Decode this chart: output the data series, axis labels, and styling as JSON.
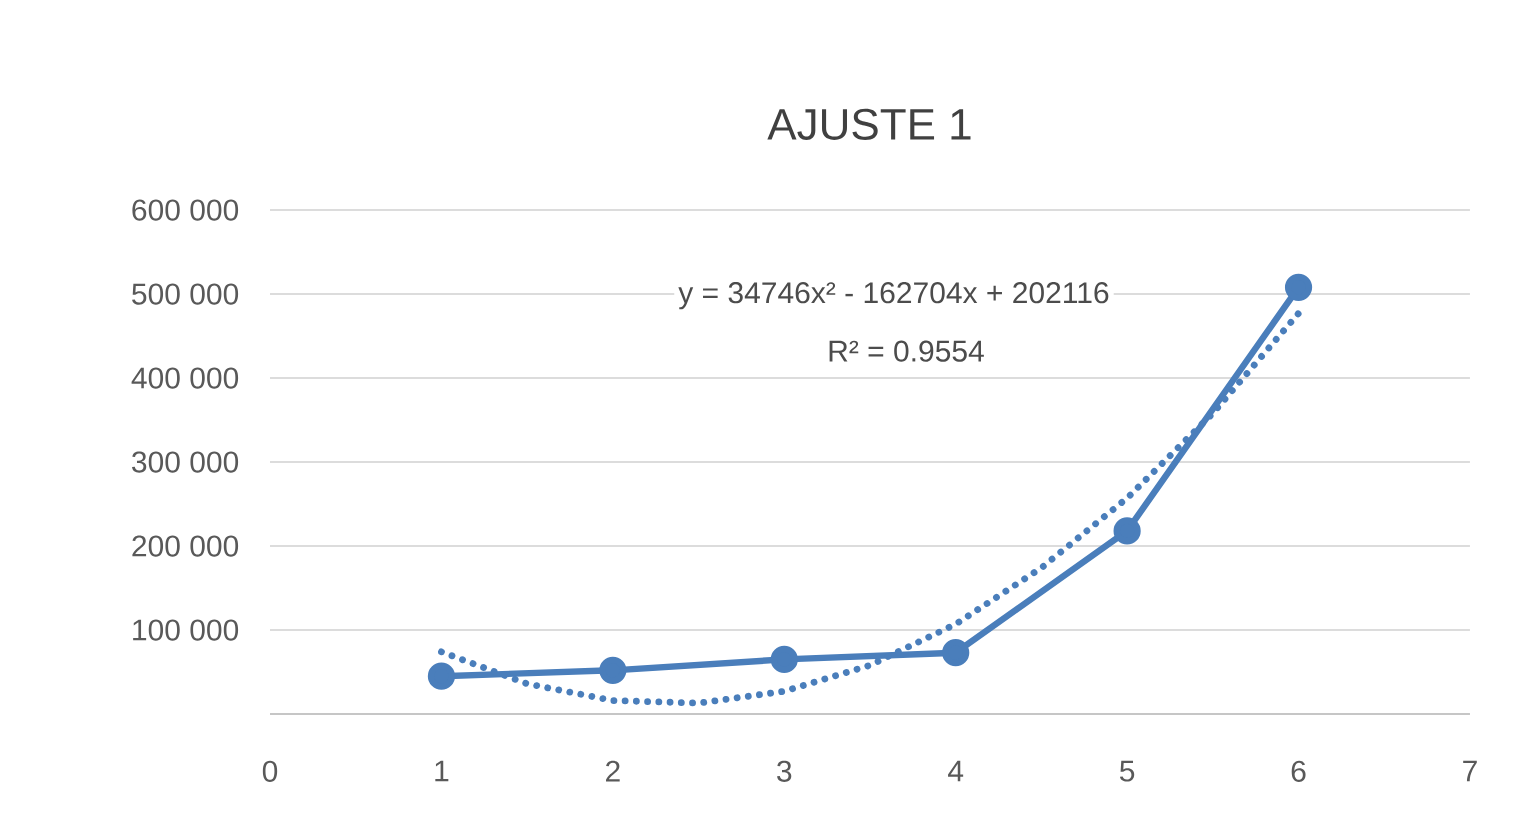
{
  "chart_data": {
    "type": "line",
    "title": "AJUSTE 1",
    "series": [
      {
        "color": "#4a7ebb",
        "marker": "circle",
        "line_style": "solid",
        "x": [
          1,
          2,
          3,
          4,
          5,
          6
        ],
        "values": [
          45000,
          52000,
          65000,
          73000,
          218000,
          508000
        ]
      },
      {
        "color": "#4a7ebb",
        "marker": "none",
        "line_style": "dotted",
        "x": [
          1,
          1.5,
          2,
          2.5,
          3,
          3.5,
          4,
          4.5,
          5,
          5.5,
          6
        ],
        "values": [
          74000,
          36000,
          16000,
          13000,
          27000,
          58000,
          107000,
          174000,
          257000,
          358000,
          477000
        ]
      }
    ],
    "xlim": [
      0,
      7
    ],
    "xticks": [
      0,
      1,
      2,
      3,
      4,
      5,
      6,
      7
    ],
    "ylim": [
      0,
      600000
    ],
    "yticks": [
      {
        "value": 0,
        "label": null
      },
      {
        "value": 100000,
        "label": "100 000"
      },
      {
        "value": 200000,
        "label": "200 000"
      },
      {
        "value": 300000,
        "label": "300 000"
      },
      {
        "value": 400000,
        "label": "400 000"
      },
      {
        "value": 500000,
        "label": "500 000"
      },
      {
        "value": 600000,
        "label": "600 000"
      }
    ],
    "grid": "y",
    "annotations": [
      "y = 34746x² - 162704x + 202116",
      "R² = 0.9554"
    ]
  }
}
